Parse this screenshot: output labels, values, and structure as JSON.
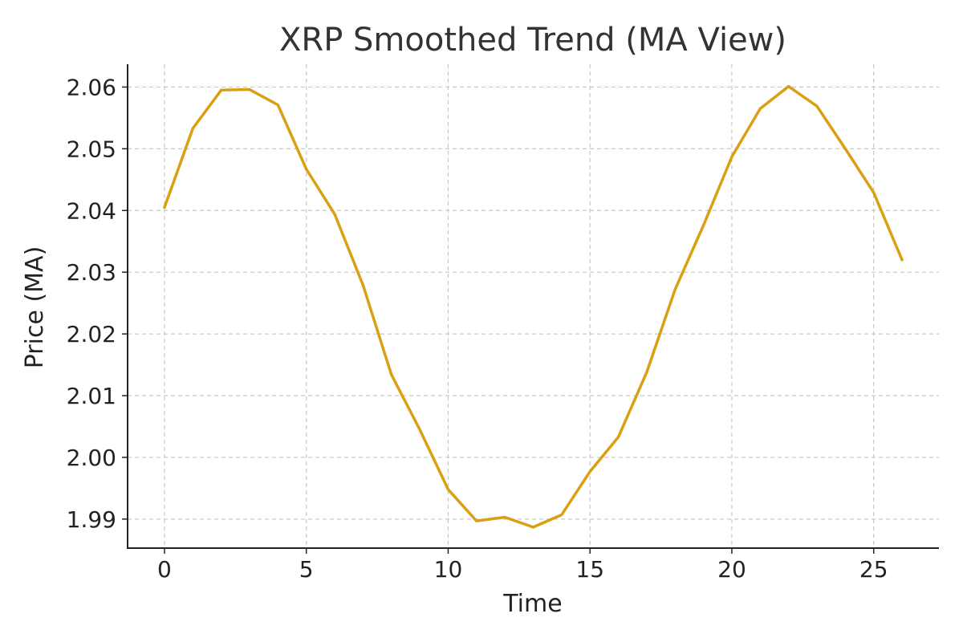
{
  "chart_data": {
    "type": "line",
    "title": "XRP Smoothed Trend (MA View)",
    "xlabel": "Time",
    "ylabel": "Price (MA)",
    "xlim": [
      -1.3,
      27.3
    ],
    "ylim": [
      1.9853,
      2.0637
    ],
    "x_ticks": [
      0,
      5,
      10,
      15,
      20,
      25
    ],
    "x_tick_labels": [
      "0",
      "5",
      "10",
      "15",
      "20",
      "25"
    ],
    "y_ticks": [
      1.99,
      2.0,
      2.01,
      2.02,
      2.03,
      2.04,
      2.05,
      2.06
    ],
    "y_tick_labels": [
      "1.99",
      "2.00",
      "2.01",
      "2.02",
      "2.03",
      "2.04",
      "2.05",
      "2.06"
    ],
    "grid": true,
    "series": [
      {
        "color": "#DAA014",
        "x": [
          0,
          1,
          2,
          3,
          4,
          5,
          6,
          7,
          8,
          9,
          10,
          11,
          12,
          13,
          14,
          15,
          16,
          17,
          18,
          19,
          20,
          21,
          22,
          23,
          24,
          25,
          26
        ],
        "values": [
          2.0405,
          2.0533,
          2.0595,
          2.0596,
          2.0571,
          2.0467,
          2.0394,
          2.0279,
          2.0134,
          2.0045,
          1.9948,
          1.9897,
          1.9903,
          1.9887,
          1.9907,
          1.9977,
          2.0033,
          2.0138,
          2.0272,
          2.0376,
          2.0487,
          2.0565,
          2.0601,
          2.0569,
          2.05,
          2.0429,
          2.032
        ]
      }
    ]
  }
}
